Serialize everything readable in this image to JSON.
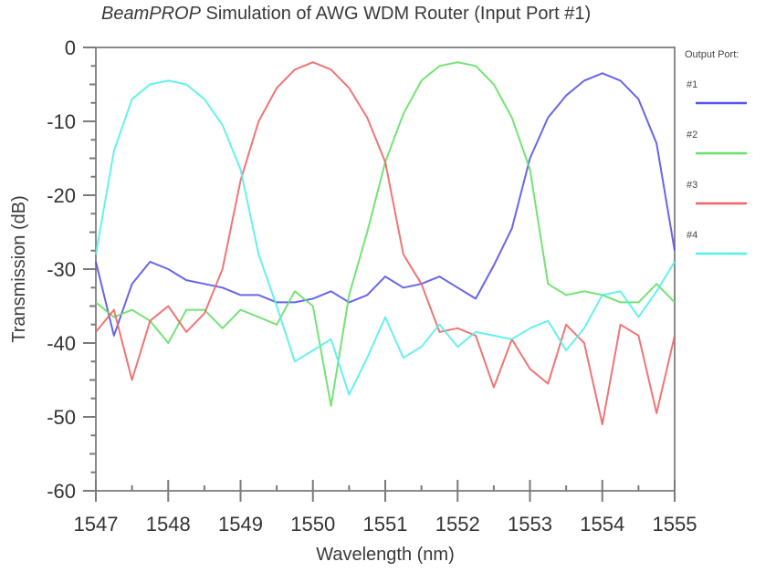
{
  "title": {
    "italic_part": "BeamPROP",
    "rest": " Simulation of AWG WDM Router (Input Port #1)"
  },
  "legend": {
    "heading": "Output Port:",
    "entries": [
      {
        "label": "#1",
        "color": "#5555e8"
      },
      {
        "label": "#2",
        "color": "#66e066"
      },
      {
        "label": "#3",
        "color": "#ee6666"
      },
      {
        "label": "#4",
        "color": "#55eeee"
      }
    ]
  },
  "axes": {
    "xlabel": "Wavelength (nm)",
    "ylabel": "Transmission (dB)",
    "xticks": [
      "1547",
      "1548",
      "1549",
      "1550",
      "1551",
      "1552",
      "1553",
      "1554",
      "1555"
    ],
    "yticks": [
      "0",
      "-10",
      "-20",
      "-30",
      "-40",
      "-50",
      "-60"
    ]
  },
  "chart_data": {
    "type": "line",
    "title": "BeamPROP Simulation of AWG WDM Router (Input Port #1)",
    "xlabel": "Wavelength (nm)",
    "ylabel": "Transmission (dB)",
    "xlim": [
      1547,
      1555
    ],
    "ylim": [
      -60,
      0
    ],
    "grid": false,
    "legend_position": "right",
    "legend_title": "Output Port:",
    "x": [
      1547,
      1547.25,
      1547.5,
      1547.75,
      1548,
      1548.25,
      1548.5,
      1548.75,
      1549,
      1549.25,
      1549.5,
      1549.75,
      1550,
      1550.25,
      1550.5,
      1550.75,
      1551,
      1551.25,
      1551.5,
      1551.75,
      1552,
      1552.25,
      1552.5,
      1552.75,
      1553,
      1553.25,
      1553.5,
      1553.75,
      1554,
      1554.25,
      1554.5,
      1554.75,
      1555
    ],
    "series": [
      {
        "name": "#1",
        "color": "#5555e8",
        "values": [
          -29,
          -39,
          -32,
          -29,
          -30,
          -31.5,
          -32,
          -32.5,
          -33.5,
          -33.5,
          -34.5,
          -34.5,
          -34,
          -33,
          -34.5,
          -33.5,
          -31,
          -32.5,
          -32,
          -31,
          -32.5,
          -34,
          -29.5,
          -24.5,
          -15,
          -9.5,
          -6.5,
          -4.5,
          -3.5,
          -4.5,
          -7,
          -13,
          -27.5
        ]
      },
      {
        "name": "#2",
        "color": "#66e066",
        "values": [
          -34.5,
          -36.5,
          -35.5,
          -37,
          -40,
          -35.5,
          -35.5,
          -38,
          -35.5,
          -36.5,
          -37.5,
          -33,
          -35,
          -48.5,
          -33.5,
          -25,
          -15.5,
          -9,
          -4.5,
          -2.5,
          -2,
          -2.5,
          -5,
          -9.5,
          -16.5,
          -32,
          -33.5,
          -33,
          -33.5,
          -34.5,
          -34.5,
          -32,
          -34.5
        ]
      },
      {
        "name": "#3",
        "color": "#ee6666",
        "values": [
          -38.5,
          -35.5,
          -45,
          -37,
          -35,
          -38.5,
          -36,
          -30,
          -18,
          -10,
          -5.5,
          -3,
          -2,
          -3,
          -5.5,
          -9.5,
          -15.5,
          -28,
          -32,
          -38.5,
          -38,
          -39,
          -46,
          -39.5,
          -43.5,
          -45.5,
          -37.5,
          -40,
          -51,
          -37.5,
          -39,
          -49.5,
          -39
        ]
      },
      {
        "name": "#4",
        "color": "#55eeee",
        "values": [
          -28,
          -14,
          -7,
          -5,
          -4.5,
          -5,
          -7,
          -10.5,
          -16.5,
          -28,
          -35,
          -42.5,
          -41,
          -39.5,
          -47,
          -42,
          -36.5,
          -42,
          -40.5,
          -37.5,
          -40.5,
          -38.5,
          -39,
          -39.5,
          -38,
          -37,
          -41,
          -38,
          -33.5,
          -33,
          -36.5,
          -33,
          -29
        ]
      }
    ]
  }
}
